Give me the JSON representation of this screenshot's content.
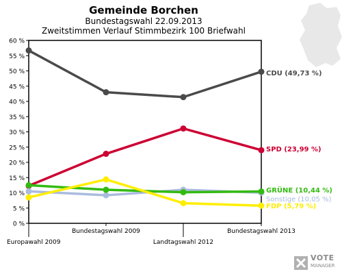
{
  "header": {
    "title": "Gemeinde Borchen",
    "subtitle": "Bundestagswahl 22.09.2013",
    "subtitle2": "Zweitstimmen Verlauf Stimmbezirk 100 Briefwahl"
  },
  "logo": {
    "line1": "VOTE",
    "line2": "MANAGER",
    "icon": "vote-manager-cross-icon"
  },
  "background_icon": "germany-map-silhouette",
  "chart_data": {
    "type": "line",
    "title": "Gemeinde Borchen",
    "xlabel": "",
    "ylabel": "",
    "ylim": [
      0,
      60
    ],
    "yticks": [
      0,
      5,
      10,
      15,
      20,
      25,
      30,
      35,
      40,
      45,
      50,
      55,
      60
    ],
    "ytick_labels": [
      "0 %",
      "5 %",
      "10 %",
      "15 %",
      "20 %",
      "25 %",
      "30 %",
      "35 %",
      "40 %",
      "45 %",
      "50 %",
      "55 %",
      "60 %"
    ],
    "grid": false,
    "categories": [
      "Europawahl 2009",
      "Bundestagswahl 2009",
      "Landtagswahl 2012",
      "Bundestagswahl 2013"
    ],
    "series": [
      {
        "name": "CDU",
        "color": "#4a4a4a",
        "label": "CDU (49,73 %)",
        "values": [
          56.7,
          43.0,
          41.4,
          49.73
        ]
      },
      {
        "name": "SPD",
        "color": "#cc0033",
        "label": "SPD (23,99 %)",
        "values": [
          12.3,
          22.8,
          31.1,
          23.99
        ]
      },
      {
        "name": "Sonstige",
        "color": "#aabbdd",
        "label": "Sonstige (10,05 %)",
        "values": [
          10.5,
          9.2,
          11.0,
          10.05
        ]
      },
      {
        "name": "GRÜNE",
        "color": "#33bb11",
        "label": "GRÜNE (10,44 %)",
        "values": [
          12.5,
          11.0,
          10.2,
          10.44
        ]
      },
      {
        "name": "FDP",
        "color": "#ffee00",
        "label": "FDP (5,79 %)",
        "values": [
          8.5,
          14.4,
          6.6,
          5.79
        ]
      }
    ]
  }
}
